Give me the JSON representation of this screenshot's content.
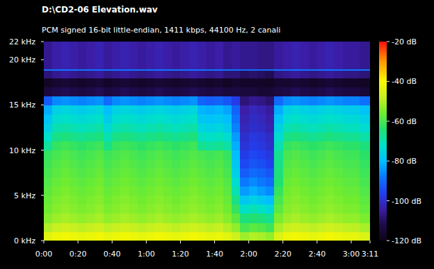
{
  "chart_data": {
    "type": "heatmap",
    "title": "D:\\CD2-06 Elevation.wav",
    "subtitle": "PCM signed 16-bit little-endian, 1411 kbps, 44100 Hz, 2 canali",
    "xlim": [
      0,
      191
    ],
    "xticks": [
      {
        "value": 0,
        "label": "0:00"
      },
      {
        "value": 20,
        "label": "0:20"
      },
      {
        "value": 40,
        "label": "0:40"
      },
      {
        "value": 60,
        "label": "1:00"
      },
      {
        "value": 80,
        "label": "1:20"
      },
      {
        "value": 100,
        "label": "1:40"
      },
      {
        "value": 120,
        "label": "2:00"
      },
      {
        "value": 140,
        "label": "2:20"
      },
      {
        "value": 160,
        "label": "2:40"
      },
      {
        "value": 180,
        "label": "3:00"
      },
      {
        "value": 191,
        "label": "3:11"
      }
    ],
    "ylim": [
      0,
      22
    ],
    "yticks": [
      {
        "value": 0,
        "label": "0 kHz"
      },
      {
        "value": 5,
        "label": "5 kHz"
      },
      {
        "value": 10,
        "label": "10 kHz"
      },
      {
        "value": 15,
        "label": "15 kHz"
      },
      {
        "value": 20,
        "label": "20 kHz"
      },
      {
        "value": 22,
        "label": "22 kHz"
      }
    ],
    "x_edges": [
      0,
      5,
      10,
      15,
      20,
      25,
      30,
      35,
      40,
      45,
      50,
      55,
      60,
      65,
      70,
      75,
      80,
      85,
      90,
      95,
      100,
      105,
      110,
      115,
      120,
      125,
      130,
      135,
      140,
      145,
      150,
      155,
      160,
      165,
      170,
      175,
      180,
      185,
      191
    ],
    "y_edges": [
      0,
      1,
      2,
      3,
      4,
      5,
      6,
      7,
      8,
      9,
      10,
      11,
      12,
      13,
      14,
      15,
      16,
      17,
      18,
      18.8,
      19,
      20,
      21,
      22
    ],
    "cells": [
      [
        -44,
        -42,
        -41,
        -42,
        -43,
        -42,
        -41,
        -43,
        -42,
        -41,
        -42,
        -43,
        -42,
        -41,
        -42,
        -43,
        -42,
        -41,
        -42,
        -43,
        -42,
        -44,
        -47,
        -52,
        -50,
        -51,
        -53,
        -45,
        -42,
        -41,
        -42,
        -43,
        -42,
        -41,
        -42,
        -43,
        -43,
        -45
      ],
      [
        -50,
        -48,
        -47,
        -48,
        -49,
        -48,
        -47,
        -49,
        -48,
        -47,
        -48,
        -49,
        -48,
        -47,
        -48,
        -49,
        -48,
        -47,
        -48,
        -49,
        -48,
        -50,
        -53,
        -60,
        -58,
        -59,
        -61,
        -51,
        -48,
        -47,
        -48,
        -49,
        -48,
        -47,
        -48,
        -49,
        -49,
        -51
      ],
      [
        -54,
        -52,
        -51,
        -52,
        -53,
        -52,
        -51,
        -53,
        -52,
        -51,
        -52,
        -53,
        -52,
        -51,
        -52,
        -53,
        -52,
        -51,
        -52,
        -53,
        -52,
        -54,
        -58,
        -65,
        -64,
        -65,
        -67,
        -55,
        -52,
        -51,
        -52,
        -53,
        -52,
        -51,
        -52,
        -53,
        -53,
        -55
      ],
      [
        -56,
        -54,
        -53,
        -54,
        -55,
        -54,
        -53,
        -55,
        -54,
        -53,
        -54,
        -55,
        -54,
        -53,
        -54,
        -55,
        -54,
        -53,
        -54,
        -55,
        -54,
        -56,
        -62,
        -72,
        -70,
        -72,
        -74,
        -58,
        -54,
        -53,
        -54,
        -55,
        -54,
        -53,
        -54,
        -55,
        -55,
        -57
      ],
      [
        -57,
        -55,
        -54,
        -55,
        -56,
        -55,
        -54,
        -56,
        -55,
        -54,
        -55,
        -56,
        -55,
        -54,
        -55,
        -56,
        -55,
        -54,
        -55,
        -56,
        -55,
        -57,
        -66,
        -78,
        -76,
        -78,
        -80,
        -60,
        -55,
        -54,
        -55,
        -56,
        -55,
        -54,
        -55,
        -56,
        -56,
        -58
      ],
      [
        -58,
        -56,
        -55,
        -56,
        -57,
        -56,
        -55,
        -57,
        -56,
        -55,
        -56,
        -57,
        -56,
        -55,
        -56,
        -57,
        -56,
        -55,
        -56,
        -57,
        -56,
        -58,
        -70,
        -84,
        -82,
        -84,
        -86,
        -62,
        -56,
        -55,
        -56,
        -57,
        -56,
        -55,
        -56,
        -57,
        -57,
        -59
      ],
      [
        -59,
        -57,
        -56,
        -57,
        -58,
        -57,
        -56,
        -58,
        -57,
        -56,
        -57,
        -58,
        -57,
        -56,
        -57,
        -58,
        -57,
        -56,
        -57,
        -58,
        -57,
        -59,
        -73,
        -88,
        -86,
        -88,
        -90,
        -64,
        -57,
        -56,
        -57,
        -58,
        -57,
        -56,
        -57,
        -58,
        -58,
        -60
      ],
      [
        -60,
        -58,
        -57,
        -58,
        -59,
        -58,
        -57,
        -59,
        -58,
        -57,
        -58,
        -59,
        -58,
        -57,
        -58,
        -59,
        -58,
        -57,
        -58,
        -59,
        -58,
        -60,
        -76,
        -92,
        -90,
        -91,
        -93,
        -65,
        -58,
        -57,
        -58,
        -59,
        -58,
        -57,
        -58,
        -59,
        -59,
        -61
      ],
      [
        -61,
        -59,
        -58,
        -59,
        -60,
        -59,
        -58,
        -60,
        -59,
        -58,
        -59,
        -60,
        -59,
        -58,
        -59,
        -60,
        -59,
        -58,
        -59,
        -60,
        -59,
        -61,
        -78,
        -95,
        -93,
        -94,
        -96,
        -66,
        -59,
        -58,
        -59,
        -60,
        -59,
        -58,
        -59,
        -60,
        -60,
        -62
      ],
      [
        -62,
        -60,
        -59,
        -60,
        -61,
        -60,
        -59,
        -61,
        -60,
        -59,
        -60,
        -61,
        -60,
        -59,
        -60,
        -61,
        -60,
        -59,
        -60,
        -61,
        -60,
        -62,
        -80,
        -97,
        -95,
        -96,
        -98,
        -67,
        -60,
        -59,
        -60,
        -61,
        -60,
        -59,
        -60,
        -61,
        -61,
        -63
      ],
      [
        -68,
        -62,
        -61,
        -62,
        -63,
        -62,
        -61,
        -66,
        -62,
        -61,
        -62,
        -63,
        -62,
        -61,
        -62,
        -63,
        -62,
        -61,
        -67,
        -68,
        -67,
        -69,
        -82,
        -99,
        -97,
        -98,
        -100,
        -70,
        -62,
        -61,
        -62,
        -63,
        -62,
        -61,
        -62,
        -63,
        -63,
        -65
      ],
      [
        -72,
        -66,
        -65,
        -66,
        -67,
        -66,
        -65,
        -70,
        -66,
        -65,
        -66,
        -67,
        -66,
        -65,
        -66,
        -67,
        -66,
        -65,
        -71,
        -72,
        -71,
        -73,
        -84,
        -100,
        -98,
        -99,
        -101,
        -73,
        -66,
        -65,
        -66,
        -67,
        -66,
        -65,
        -66,
        -67,
        -67,
        -69
      ],
      [
        -76,
        -70,
        -69,
        -70,
        -71,
        -70,
        -69,
        -74,
        -70,
        -69,
        -70,
        -71,
        -70,
        -69,
        -70,
        -71,
        -70,
        -69,
        -75,
        -76,
        -75,
        -77,
        -87,
        -102,
        -100,
        -101,
        -103,
        -76,
        -70,
        -69,
        -70,
        -71,
        -70,
        -69,
        -70,
        -71,
        -71,
        -73
      ],
      [
        -79,
        -73,
        -72,
        -73,
        -74,
        -73,
        -72,
        -77,
        -73,
        -72,
        -73,
        -74,
        -73,
        -72,
        -73,
        -74,
        -73,
        -72,
        -78,
        -79,
        -78,
        -80,
        -89,
        -103,
        -101,
        -102,
        -104,
        -79,
        -73,
        -72,
        -73,
        -74,
        -73,
        -72,
        -73,
        -74,
        -74,
        -76
      ],
      [
        -82,
        -76,
        -75,
        -76,
        -77,
        -76,
        -75,
        -80,
        -76,
        -75,
        -76,
        -77,
        -76,
        -75,
        -76,
        -77,
        -76,
        -75,
        -81,
        -82,
        -81,
        -83,
        -91,
        -104,
        -102,
        -103,
        -105,
        -82,
        -76,
        -75,
        -76,
        -77,
        -76,
        -75,
        -76,
        -77,
        -77,
        -79
      ],
      [
        -92,
        -86,
        -85,
        -86,
        -87,
        -86,
        -85,
        -90,
        -86,
        -85,
        -86,
        -87,
        -86,
        -85,
        -86,
        -87,
        -86,
        -85,
        -91,
        -92,
        -91,
        -93,
        -97,
        -108,
        -106,
        -107,
        -109,
        -90,
        -86,
        -85,
        -86,
        -87,
        -86,
        -85,
        -86,
        -87,
        -87,
        -89
      ],
      [
        -114,
        -112,
        -111,
        -112,
        -113,
        -112,
        -111,
        -113,
        -112,
        -111,
        -112,
        -113,
        -112,
        -111,
        -112,
        -113,
        -112,
        -111,
        -112,
        -113,
        -112,
        -114,
        -113,
        -114,
        -114,
        -115,
        -115,
        -113,
        -112,
        -111,
        -112,
        -113,
        -112,
        -111,
        -112,
        -113,
        -113,
        -115
      ],
      [
        -118,
        -116,
        -115,
        -116,
        -117,
        -116,
        -115,
        -117,
        -116,
        -115,
        -116,
        -117,
        -116,
        -115,
        -116,
        -117,
        -116,
        -115,
        -116,
        -117,
        -116,
        -118,
        -116,
        -117,
        -117,
        -117,
        -118,
        -116,
        -116,
        -115,
        -116,
        -117,
        -116,
        -115,
        -116,
        -117,
        -117,
        -118
      ],
      [
        -108,
        -106,
        -105,
        -106,
        -107,
        -106,
        -105,
        -107,
        -106,
        -105,
        -106,
        -107,
        -106,
        -105,
        -106,
        -107,
        -106,
        -105,
        -106,
        -107,
        -106,
        -108,
        -108,
        -110,
        -109,
        -110,
        -111,
        -107,
        -106,
        -105,
        -106,
        -107,
        -106,
        -105,
        -106,
        -107,
        -107,
        -108
      ],
      [
        -88,
        -88,
        -88,
        -88,
        -88,
        -88,
        -88,
        -88,
        -88,
        -88,
        -88,
        -88,
        -88,
        -88,
        -88,
        -88,
        -88,
        -88,
        -88,
        -88,
        -88,
        -88,
        -88,
        -89,
        -89,
        -89,
        -89,
        -88,
        -88,
        -88,
        -88,
        -88,
        -88,
        -88,
        -88,
        -88,
        -88,
        -88
      ],
      [
        -106,
        -104,
        -103,
        -104,
        -105,
        -104,
        -103,
        -105,
        -104,
        -103,
        -104,
        -105,
        -104,
        -103,
        -104,
        -105,
        -104,
        -103,
        -104,
        -105,
        -104,
        -106,
        -105,
        -106,
        -106,
        -107,
        -107,
        -105,
        -104,
        -103,
        -104,
        -105,
        -104,
        -103,
        -104,
        -105,
        -105,
        -106
      ],
      [
        -106,
        -104,
        -103,
        -104,
        -105,
        -104,
        -103,
        -105,
        -104,
        -103,
        -104,
        -105,
        -104,
        -103,
        -104,
        -105,
        -104,
        -103,
        -104,
        -105,
        -104,
        -106,
        -105,
        -106,
        -106,
        -107,
        -107,
        -105,
        -104,
        -103,
        -104,
        -105,
        -104,
        -103,
        -104,
        -105,
        -105,
        -106
      ],
      [
        -106,
        -104,
        -103,
        -104,
        -105,
        -104,
        -103,
        -105,
        -104,
        -103,
        -104,
        -105,
        -104,
        -103,
        -104,
        -105,
        -104,
        -103,
        -104,
        -105,
        -104,
        -106,
        -105,
        -106,
        -106,
        -107,
        -107,
        -105,
        -104,
        -103,
        -104,
        -105,
        -104,
        -103,
        -104,
        -105,
        -105,
        -106
      ]
    ],
    "colorbar_range": [
      -120,
      -20
    ],
    "colorbar_ticks": [
      {
        "value": -20,
        "label": "-20 dB"
      },
      {
        "value": -40,
        "label": "-40 dB"
      },
      {
        "value": -60,
        "label": "-60 dB"
      },
      {
        "value": -80,
        "label": "-80 dB"
      },
      {
        "value": -100,
        "label": "-100 dB"
      },
      {
        "value": -120,
        "label": "-120 dB"
      }
    ]
  }
}
